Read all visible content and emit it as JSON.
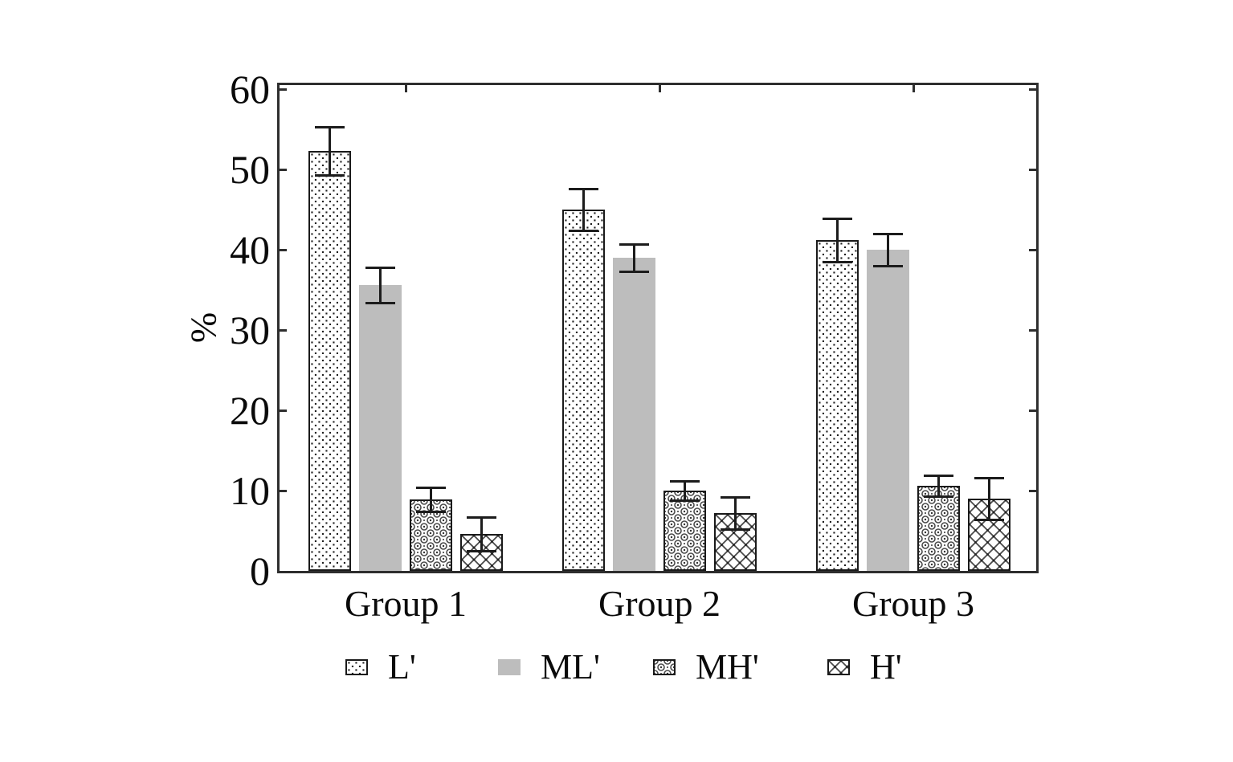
{
  "page": {
    "background": "#ffffff"
  },
  "style": {
    "frame_color": "#2e2e2e",
    "bar_border_color": "#1a1a1a",
    "solid_gray_fill": "#bdbdbd",
    "pattern_ink": "#4a4a4a",
    "dots_ink": "#1f1f1f",
    "error_bar_color": "#1c1c1c",
    "text_color": "#0a0a0a"
  },
  "chart_data": {
    "type": "bar",
    "title": "",
    "xlabel": "",
    "ylabel": "%",
    "categories": [
      "Group 1",
      "Group 2",
      "Group 3"
    ],
    "series": [
      {
        "name": "L'",
        "pattern": "dots",
        "values": [
          52.3,
          45.0,
          41.2
        ],
        "errors": [
          3.0,
          2.6,
          2.7
        ]
      },
      {
        "name": "ML'",
        "pattern": "solid",
        "values": [
          35.6,
          39.0,
          40.0
        ],
        "errors": [
          2.2,
          1.7,
          2.0
        ]
      },
      {
        "name": "MH'",
        "pattern": "ornament",
        "values": [
          8.9,
          10.0,
          10.6
        ],
        "errors": [
          1.5,
          1.2,
          1.3
        ]
      },
      {
        "name": "H'",
        "pattern": "crosshatch",
        "values": [
          4.6,
          7.2,
          9.0
        ],
        "errors": [
          2.1,
          2.0,
          2.6
        ]
      }
    ],
    "error_bars": true,
    "yticks": [
      0,
      10,
      20,
      30,
      40,
      50,
      60
    ],
    "ylim": [
      0,
      61
    ],
    "grid": false,
    "legend_position": "bottom"
  }
}
